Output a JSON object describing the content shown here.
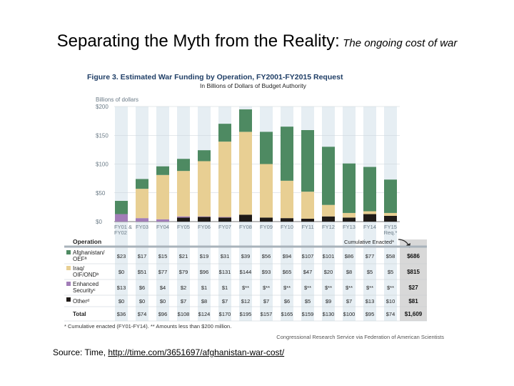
{
  "slide": {
    "title_main": "Separating the Myth from the Reality:",
    "title_sub": "The ongoing cost of war",
    "source_prefix": "Source: Time, ",
    "source_link": "http://time.com/3651697/afghanistan-war-cost/"
  },
  "colors": {
    "afghanistan": "#4e8a62",
    "iraq": "#e8cf93",
    "enhanced_security": "#a27db8",
    "other": "#1f1a17",
    "column_band": "#e6eef3",
    "table_header": "#a9b3bb",
    "title_blue": "#1f3e66"
  },
  "chart_data": {
    "type": "bar",
    "stacked": true,
    "title": "Figure 3. Estimated War Funding by Operation, FY2001-FY2015 Request",
    "subtitle": "In Billions of Dollars of Budget Authority",
    "ylabel": "Billions of dollars",
    "ylim": [
      0,
      200
    ],
    "yticks": [
      "$0",
      "$50",
      "$100",
      "$150",
      "$200"
    ],
    "categories": [
      "FY01 & FY02",
      "FY03",
      "FY04",
      "FY05",
      "FY06",
      "FY07",
      "FY08",
      "FY09",
      "FY10",
      "FY11",
      "FY12",
      "FY13",
      "FY14",
      "FY15 Req.*"
    ],
    "series": [
      {
        "key": "other",
        "values": [
          0,
          0,
          0,
          7,
          8,
          7,
          12,
          7,
          6,
          5,
          9,
          7,
          13,
          10
        ]
      },
      {
        "key": "enhanced_security",
        "values": [
          13,
          6,
          4,
          2,
          1,
          1,
          0,
          0,
          0,
          0,
          0,
          0,
          0,
          0
        ]
      },
      {
        "key": "iraq",
        "values": [
          0,
          51,
          77,
          79,
          96,
          131,
          144,
          93,
          65,
          47,
          20,
          8,
          5,
          5
        ]
      },
      {
        "key": "afghanistan",
        "values": [
          23,
          17,
          15,
          21,
          19,
          31,
          39,
          56,
          94,
          107,
          101,
          86,
          77,
          58
        ]
      }
    ],
    "table": {
      "header_label": "Operation",
      "cumulative_label": "Cumulative Enacted*",
      "rows": [
        {
          "key": "afghanistan",
          "label1": "Afghanistan/",
          "label2": "OEFª",
          "values": [
            "$23",
            "$17",
            "$15",
            "$21",
            "$19",
            "$31",
            "$39",
            "$56",
            "$94",
            "$107",
            "$101",
            "$86",
            "$77",
            "$58"
          ],
          "cumulative": "$686"
        },
        {
          "key": "iraq",
          "label1": "Iraq/",
          "label2": "OIF/ONDᵇ",
          "values": [
            "$0",
            "$51",
            "$77",
            "$79",
            "$96",
            "$131",
            "$144",
            "$93",
            "$65",
            "$47",
            "$20",
            "$8",
            "$5",
            "$5"
          ],
          "cumulative": "$815"
        },
        {
          "key": "enhanced_security",
          "label1": "Enhanced",
          "label2": "Securityᶜ",
          "values": [
            "$13",
            "$6",
            "$4",
            "$2",
            "$1",
            "$1",
            "$**",
            "$**",
            "$**",
            "$**",
            "$**",
            "$**",
            "$**",
            "$**"
          ],
          "cumulative": "$27"
        },
        {
          "key": "other",
          "label1": "Otherᵈ",
          "label2": "",
          "values": [
            "$0",
            "$0",
            "$0",
            "$7",
            "$8",
            "$7",
            "$12",
            "$7",
            "$6",
            "$5",
            "$9",
            "$7",
            "$13",
            "$10"
          ],
          "cumulative": "$81"
        },
        {
          "key": "total",
          "label1": "Total",
          "label2": "",
          "values": [
            "$36",
            "$74",
            "$96",
            "$108",
            "$124",
            "$170",
            "$195",
            "$157",
            "$165",
            "$159",
            "$130",
            "$100",
            "$95",
            "$74"
          ],
          "cumulative": "$1,609"
        }
      ]
    },
    "footnote": "* Cumulative enacted (FY01-FY14). ** Amounts less than $200 million.",
    "credit": "Congressional Research Service via Federation of American Scientists"
  }
}
